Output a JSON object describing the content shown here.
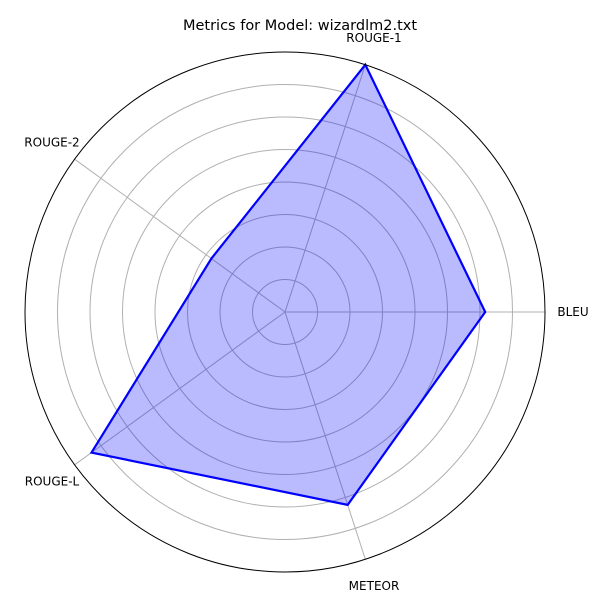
{
  "chart_data": {
    "type": "radar",
    "title": "Metrics for Model: wizardlm2.txt",
    "categories": [
      "BLEU",
      "ROUGE-1",
      "ROUGE-2",
      "ROUGE-L",
      "METEOR"
    ],
    "values": [
      0.77,
      1.0,
      0.35,
      0.92,
      0.78
    ],
    "r_range": [
      0,
      1
    ],
    "grid": true,
    "series_color": "#0000ff",
    "fill_color": "#0000ff",
    "fill_opacity": 0.27,
    "grid_color": "#b0b0b0"
  }
}
